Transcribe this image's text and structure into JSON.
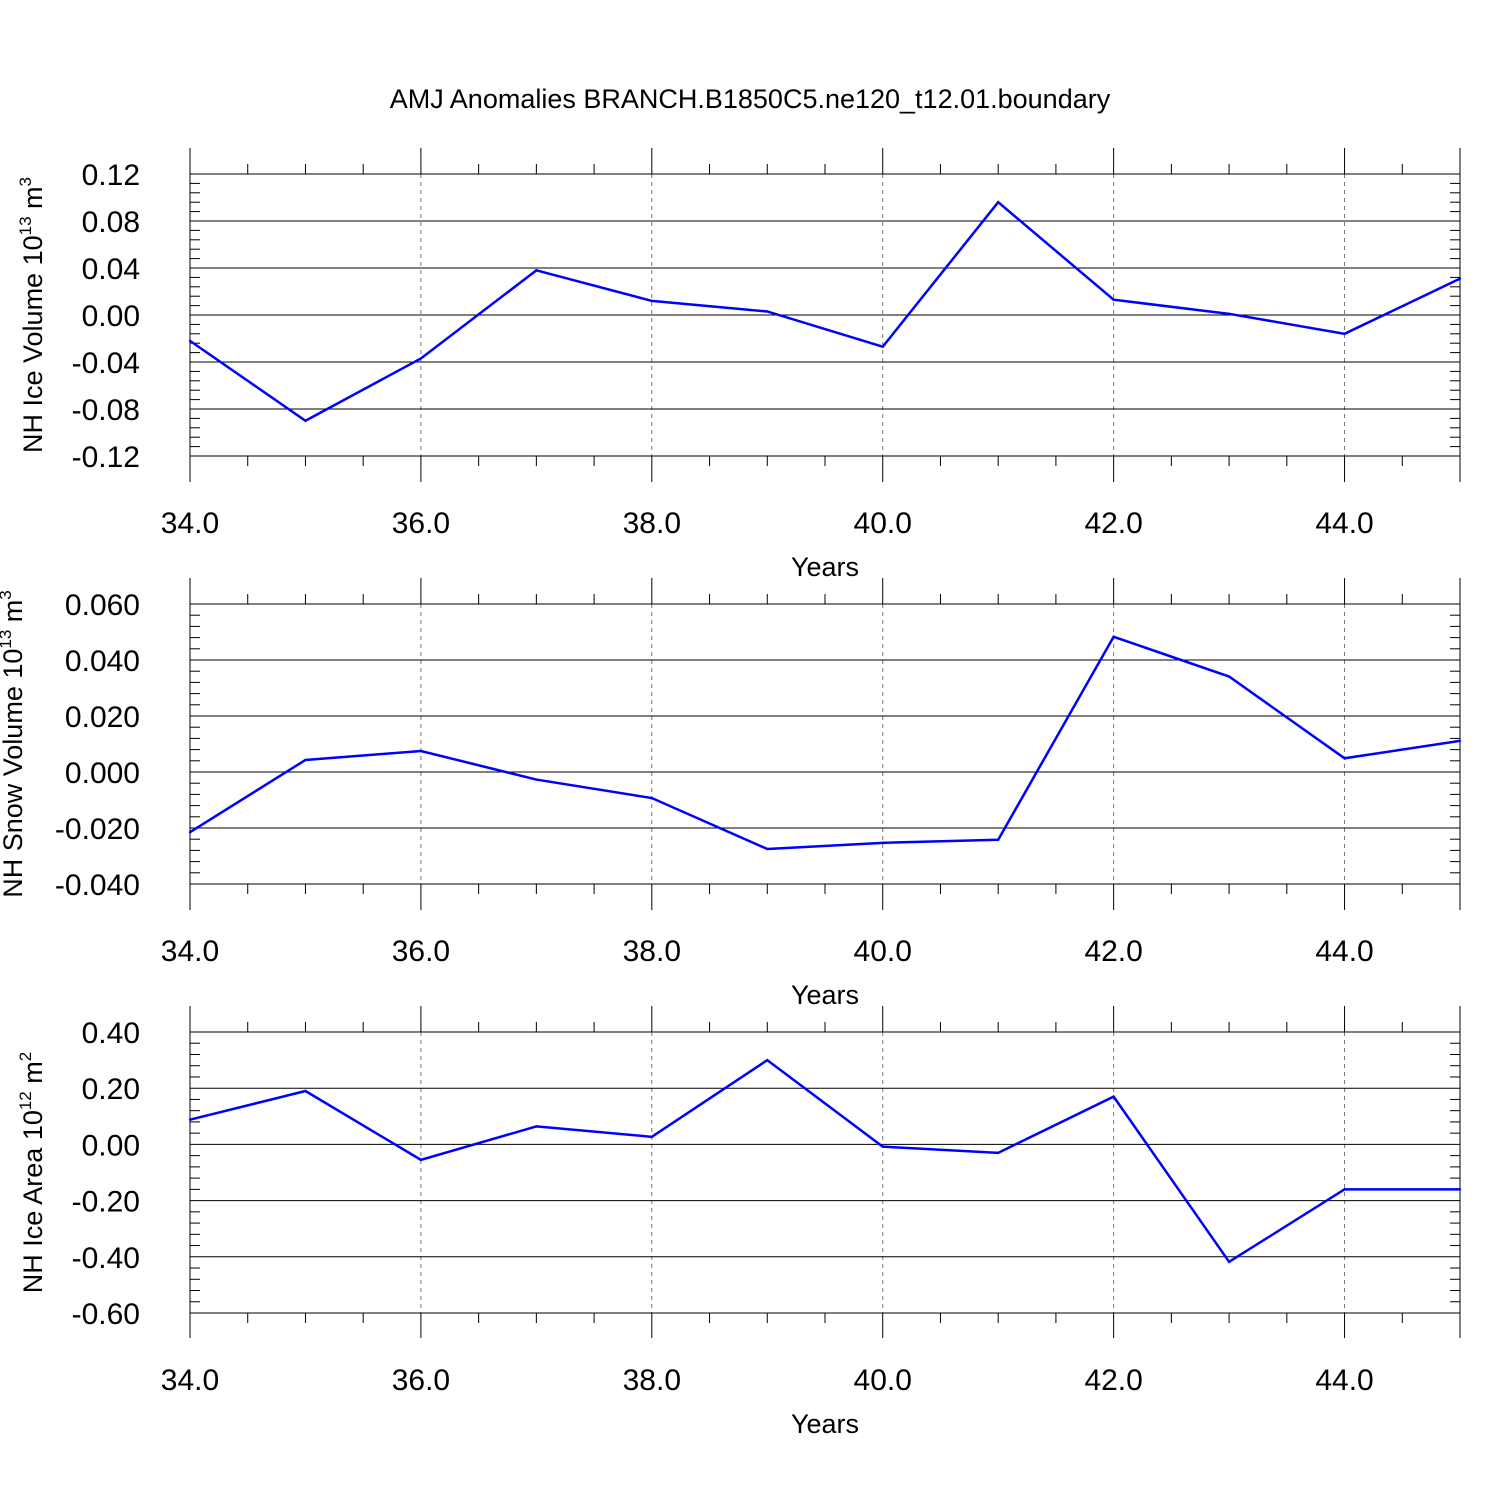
{
  "title": "AMJ Anomalies BRANCH.B1850C5.ne120_t12.01.boundary",
  "line_color": "#0000ff",
  "chart_data": [
    {
      "type": "line",
      "ylabel_main": "NH Ice Volume 10",
      "ylabel_exp": "13",
      "ylabel_unit": " m",
      "ylabel_unit_exp": "3",
      "xlabel": "Years",
      "xlim": [
        34,
        45
      ],
      "ylim": [
        -0.12,
        0.12
      ],
      "x_ticks": [
        34,
        36,
        38,
        40,
        42,
        44
      ],
      "x_tick_labels": [
        "34.0",
        "36.0",
        "38.0",
        "40.0",
        "42.0",
        "44.0"
      ],
      "y_ticks": [
        -0.12,
        -0.08,
        -0.04,
        0.0,
        0.04,
        0.08,
        0.12
      ],
      "y_tick_labels": [
        "-0.12",
        "-0.08",
        "-0.04",
        "0.00",
        "0.04",
        "0.08",
        "0.12"
      ],
      "x": [
        34,
        35,
        36,
        37,
        38,
        39,
        40,
        41,
        42,
        43,
        44,
        45
      ],
      "y": [
        -0.022,
        -0.09,
        -0.037,
        0.038,
        0.012,
        0.003,
        -0.027,
        0.096,
        0.013,
        0.001,
        -0.016,
        0.031
      ]
    },
    {
      "type": "line",
      "ylabel_main": "NH Snow Volume 10",
      "ylabel_exp": "13",
      "ylabel_unit": " m",
      "ylabel_unit_exp": "3",
      "xlabel": "Years",
      "xlim": [
        34,
        45
      ],
      "ylim": [
        -0.04,
        0.06
      ],
      "x_ticks": [
        34,
        36,
        38,
        40,
        42,
        44
      ],
      "x_tick_labels": [
        "34.0",
        "36.0",
        "38.0",
        "40.0",
        "42.0",
        "44.0"
      ],
      "y_ticks": [
        -0.04,
        -0.02,
        0.0,
        0.02,
        0.04,
        0.06
      ],
      "y_tick_labels": [
        "-0.040",
        "-0.020",
        "0.000",
        "0.020",
        "0.040",
        "0.060"
      ],
      "x": [
        34,
        35,
        36,
        37,
        38,
        39,
        40,
        41,
        42,
        43,
        44,
        45
      ],
      "y": [
        -0.0215,
        0.0043,
        0.0075,
        -0.0027,
        -0.0093,
        -0.0275,
        -0.0253,
        -0.0242,
        0.0483,
        0.0341,
        0.0049,
        0.0111
      ]
    },
    {
      "type": "line",
      "ylabel_main": "NH Ice Area 10",
      "ylabel_exp": "12",
      "ylabel_unit": " m",
      "ylabel_unit_exp": "2",
      "xlabel": "Years",
      "xlim": [
        34,
        45
      ],
      "ylim": [
        -0.6,
        0.4
      ],
      "x_ticks": [
        34,
        36,
        38,
        40,
        42,
        44
      ],
      "x_tick_labels": [
        "34.0",
        "36.0",
        "38.0",
        "40.0",
        "42.0",
        "44.0"
      ],
      "y_ticks": [
        -0.6,
        -0.4,
        -0.2,
        0.0,
        0.2,
        0.4
      ],
      "y_tick_labels": [
        "-0.60",
        "-0.40",
        "-0.20",
        "0.00",
        "0.20",
        "0.40"
      ],
      "x": [
        34,
        35,
        36,
        37,
        38,
        39,
        40,
        41,
        42,
        43,
        44,
        45
      ],
      "y": [
        0.088,
        0.19,
        -0.055,
        0.064,
        0.027,
        0.3,
        -0.008,
        -0.03,
        0.17,
        -0.418,
        -0.16,
        -0.16
      ]
    }
  ]
}
